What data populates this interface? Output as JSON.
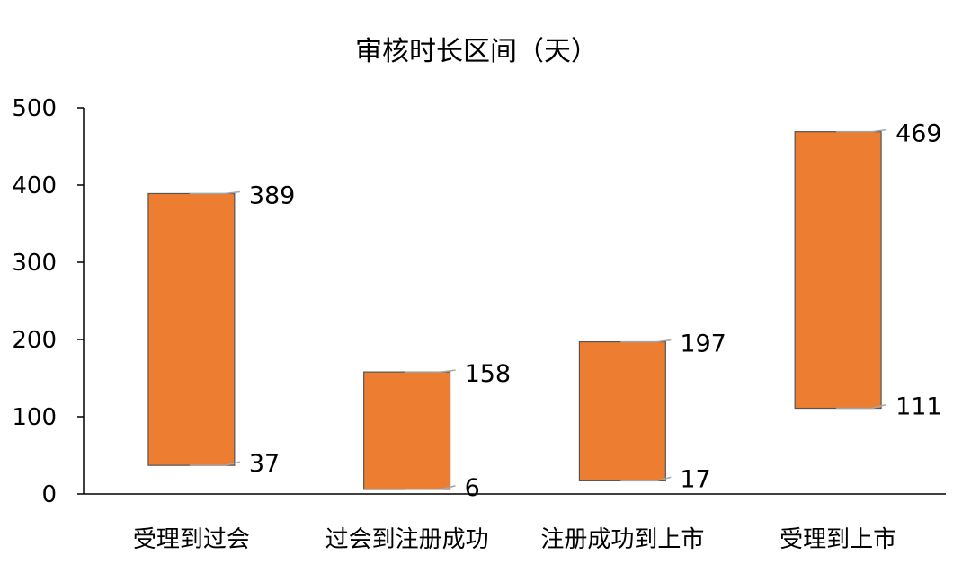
{
  "chart_data": {
    "type": "bar",
    "subtype": "floating-range",
    "title": "审核时长区间（天）",
    "xlabel": "",
    "ylabel": "",
    "categories": [
      "受理到过会",
      "过会到注册成功",
      "注册成功到上市",
      "受理到上市"
    ],
    "series": [
      {
        "low": [
          37,
          6,
          17,
          111
        ],
        "high": [
          389,
          158,
          197,
          469
        ]
      }
    ],
    "ylim": [
      0,
      500
    ],
    "yticks": [
      "0",
      "100",
      "200",
      "300",
      "400",
      "500"
    ],
    "data_labels": {
      "low": [
        "37",
        "6",
        "17",
        "111"
      ],
      "high": [
        "389",
        "158",
        "197",
        "469"
      ]
    },
    "grid": false,
    "legend": "none",
    "colors": {
      "bar": "#ED7D31",
      "bar_border": "#555555",
      "axis": "#000000",
      "leader": "#A6A6A6"
    }
  }
}
